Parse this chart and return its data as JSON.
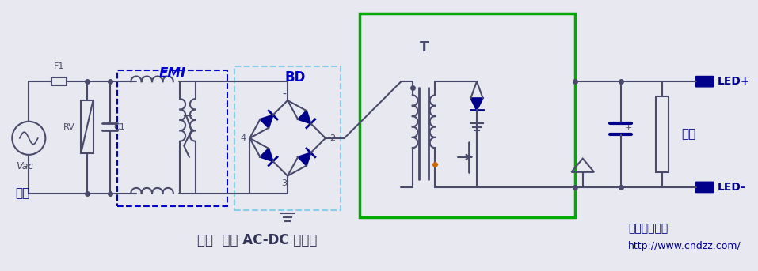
{
  "bg_color": "#e8e8f0",
  "line_color": "#4a4a6a",
  "blue_color": "#0000cd",
  "dark_blue": "#00008b",
  "green_box_color": "#00aa00",
  "light_blue_box": "#add8e6",
  "title": "图一  反激 AC-DC 转换器",
  "watermark1": "电子电路图网",
  "watermark2": "http://www.cndzz.com/",
  "label_emi": "EMI",
  "label_bd": "BD",
  "label_t": "T",
  "label_f1": "F1",
  "label_rv": "RV",
  "label_c1": "C1",
  "label_vac": "Vac",
  "label_input": "输入",
  "label_output": "输出",
  "label_ledp": "LED+",
  "label_ledm": "LED-",
  "label_4": "4",
  "label_2": "2",
  "label_3b": "3"
}
